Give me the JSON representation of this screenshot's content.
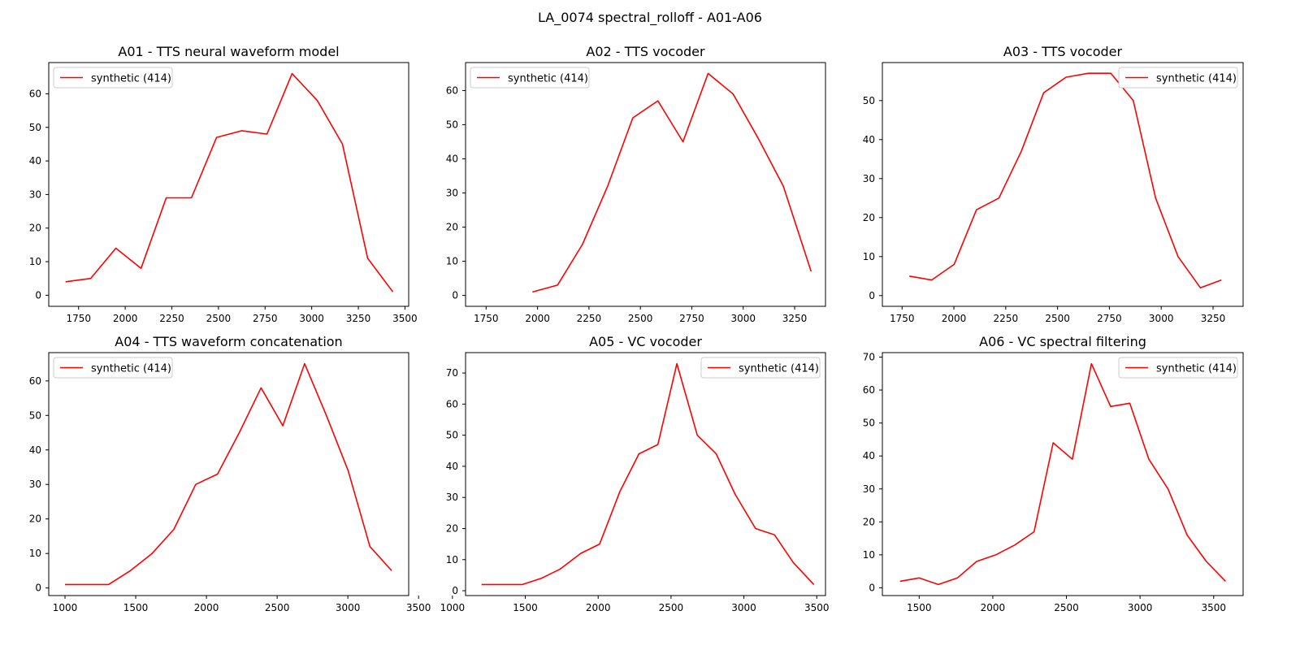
{
  "figure_title": "LA_0074 spectral_rolloff - A01-A06",
  "line_color": "#ff0000",
  "chart_data": [
    {
      "type": "line",
      "title": "A01 - TTS neural waveform model",
      "xlabel": "",
      "ylabel": "",
      "xlim": [
        1590,
        3520
      ],
      "ylim": [
        -3.3,
        69.3
      ],
      "xticks": [
        1750,
        2000,
        2250,
        2500,
        2750,
        3000,
        3250,
        3500
      ],
      "yticks": [
        0,
        10,
        20,
        30,
        40,
        50,
        60
      ],
      "legend": "top-left",
      "grid": false,
      "series": [
        {
          "name": "synthetic (414)",
          "x": [
            1680,
            1815,
            1950,
            2085,
            2220,
            2355,
            2490,
            2625,
            2760,
            2895,
            3030,
            3165,
            3300,
            3435
          ],
          "y": [
            4,
            5,
            14,
            8,
            29,
            29,
            47,
            49,
            48,
            66,
            58,
            45,
            11,
            1
          ]
        }
      ]
    },
    {
      "type": "line",
      "title": "A02 - TTS vocoder",
      "xlabel": "",
      "ylabel": "",
      "xlim": [
        1650,
        3400
      ],
      "ylim": [
        -3.2,
        68.2
      ],
      "xticks": [
        1750,
        2000,
        2250,
        2500,
        2750,
        3000,
        3250
      ],
      "yticks": [
        0,
        10,
        20,
        30,
        40,
        50,
        60
      ],
      "legend": "top-left",
      "grid": false,
      "series": [
        {
          "name": "synthetic (414)",
          "x": [
            1975,
            2097,
            2219,
            2341,
            2463,
            2585,
            2707,
            2829,
            2951,
            3073,
            3195,
            3330
          ],
          "y": [
            1,
            3,
            15,
            32,
            52,
            57,
            45,
            65,
            59,
            46,
            32,
            7
          ]
        }
      ]
    },
    {
      "type": "line",
      "title": "A03 - TTS vocoder",
      "xlabel": "",
      "ylabel": "",
      "xlim": [
        1655,
        3395
      ],
      "ylim": [
        -2.75,
        59.75
      ],
      "xticks": [
        1750,
        2000,
        2250,
        2500,
        2750,
        3000,
        3250
      ],
      "yticks": [
        0,
        10,
        20,
        30,
        40,
        50
      ],
      "legend": "top-right",
      "grid": false,
      "series": [
        {
          "name": "synthetic (414)",
          "x": [
            1785,
            1893,
            2001,
            2109,
            2217,
            2325,
            2433,
            2541,
            2649,
            2757,
            2865,
            2973,
            3081,
            3189,
            3290
          ],
          "y": [
            5,
            4,
            8,
            22,
            25,
            37,
            52,
            56,
            57,
            57,
            50,
            25,
            10,
            2,
            4
          ]
        }
      ]
    },
    {
      "type": "line",
      "title": "A04 - TTS waveform concatenation",
      "xlabel": "",
      "ylabel": "",
      "xlim": [
        885,
        3430
      ],
      "ylim": [
        -2.2,
        68.2
      ],
      "xticks": [
        1000,
        1500,
        2000,
        2500,
        3000,
        3500
      ],
      "yticks": [
        0,
        10,
        20,
        30,
        40,
        50,
        60
      ],
      "legend": "top-left",
      "grid": false,
      "series": [
        {
          "name": "synthetic (414)",
          "x": [
            1000,
            1154,
            1308,
            1462,
            1616,
            1770,
            1924,
            2078,
            2232,
            2386,
            2540,
            2694,
            2848,
            3002,
            3156,
            3310
          ],
          "y": [
            1,
            1,
            1,
            5,
            10,
            17,
            30,
            33,
            45,
            58,
            47,
            65,
            50,
            34,
            12,
            5
          ]
        }
      ]
    },
    {
      "type": "line",
      "title": "A05 - VC vocoder",
      "xlabel": "",
      "ylabel": "",
      "xlim": [
        1090,
        3560
      ],
      "ylim": [
        -1.55,
        76.55
      ],
      "xticks": [
        1000,
        1500,
        2000,
        2500,
        3000,
        3500
      ],
      "yticks": [
        0,
        10,
        20,
        30,
        40,
        50,
        60,
        70
      ],
      "legend": "top-right",
      "grid": false,
      "series": [
        {
          "name": "synthetic (414)",
          "x": [
            1200,
            1330,
            1480,
            1610,
            1740,
            1880,
            2010,
            2150,
            2280,
            2410,
            2540,
            2680,
            2810,
            2940,
            3080,
            3210,
            3340,
            3480
          ],
          "y": [
            2,
            2,
            2,
            4,
            7,
            12,
            15,
            32,
            44,
            47,
            73,
            50,
            44,
            31,
            20,
            18,
            9,
            2
          ]
        }
      ]
    },
    {
      "type": "line",
      "title": "A06 - VC spectral filtering",
      "xlabel": "",
      "ylabel": "",
      "xlim": [
        1250,
        3700
      ],
      "ylim": [
        -2.35,
        71.35
      ],
      "xticks": [
        1500,
        2000,
        2500,
        3000,
        3500
      ],
      "yticks": [
        0,
        10,
        20,
        30,
        40,
        50,
        60,
        70
      ],
      "legend": "top-right",
      "grid": false,
      "series": [
        {
          "name": "synthetic (414)",
          "x": [
            1370,
            1500,
            1630,
            1760,
            1890,
            2020,
            2150,
            2280,
            2410,
            2540,
            2670,
            2800,
            2930,
            3060,
            3190,
            3320,
            3450,
            3580
          ],
          "y": [
            2,
            3,
            1,
            3,
            8,
            10,
            13,
            17,
            44,
            39,
            68,
            55,
            56,
            39,
            30,
            16,
            8,
            2
          ]
        }
      ]
    }
  ]
}
